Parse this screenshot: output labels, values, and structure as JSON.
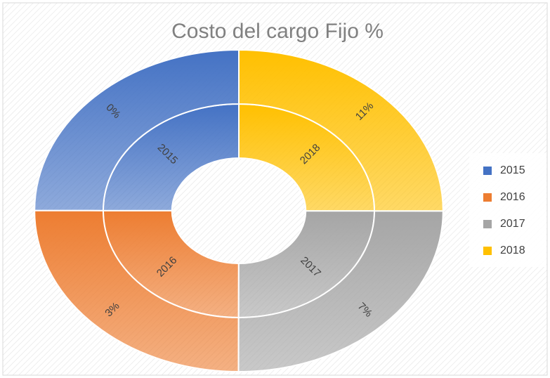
{
  "chart_data": {
    "type": "doughnut",
    "title": "Costo del cargo Fijo %",
    "categories": [
      "2015",
      "2016",
      "2017",
      "2018"
    ],
    "colors": [
      "#4472c4",
      "#ed7d31",
      "#a5a5a5",
      "#ffc000"
    ],
    "series": [
      {
        "values": [
          2015,
          2016,
          2017,
          2018
        ]
      },
      {
        "values": [
          2015,
          2016,
          2017,
          2018
        ],
        "labels": [
          "0%",
          "3%",
          "7%",
          "11%"
        ]
      }
    ],
    "legend": "right"
  }
}
